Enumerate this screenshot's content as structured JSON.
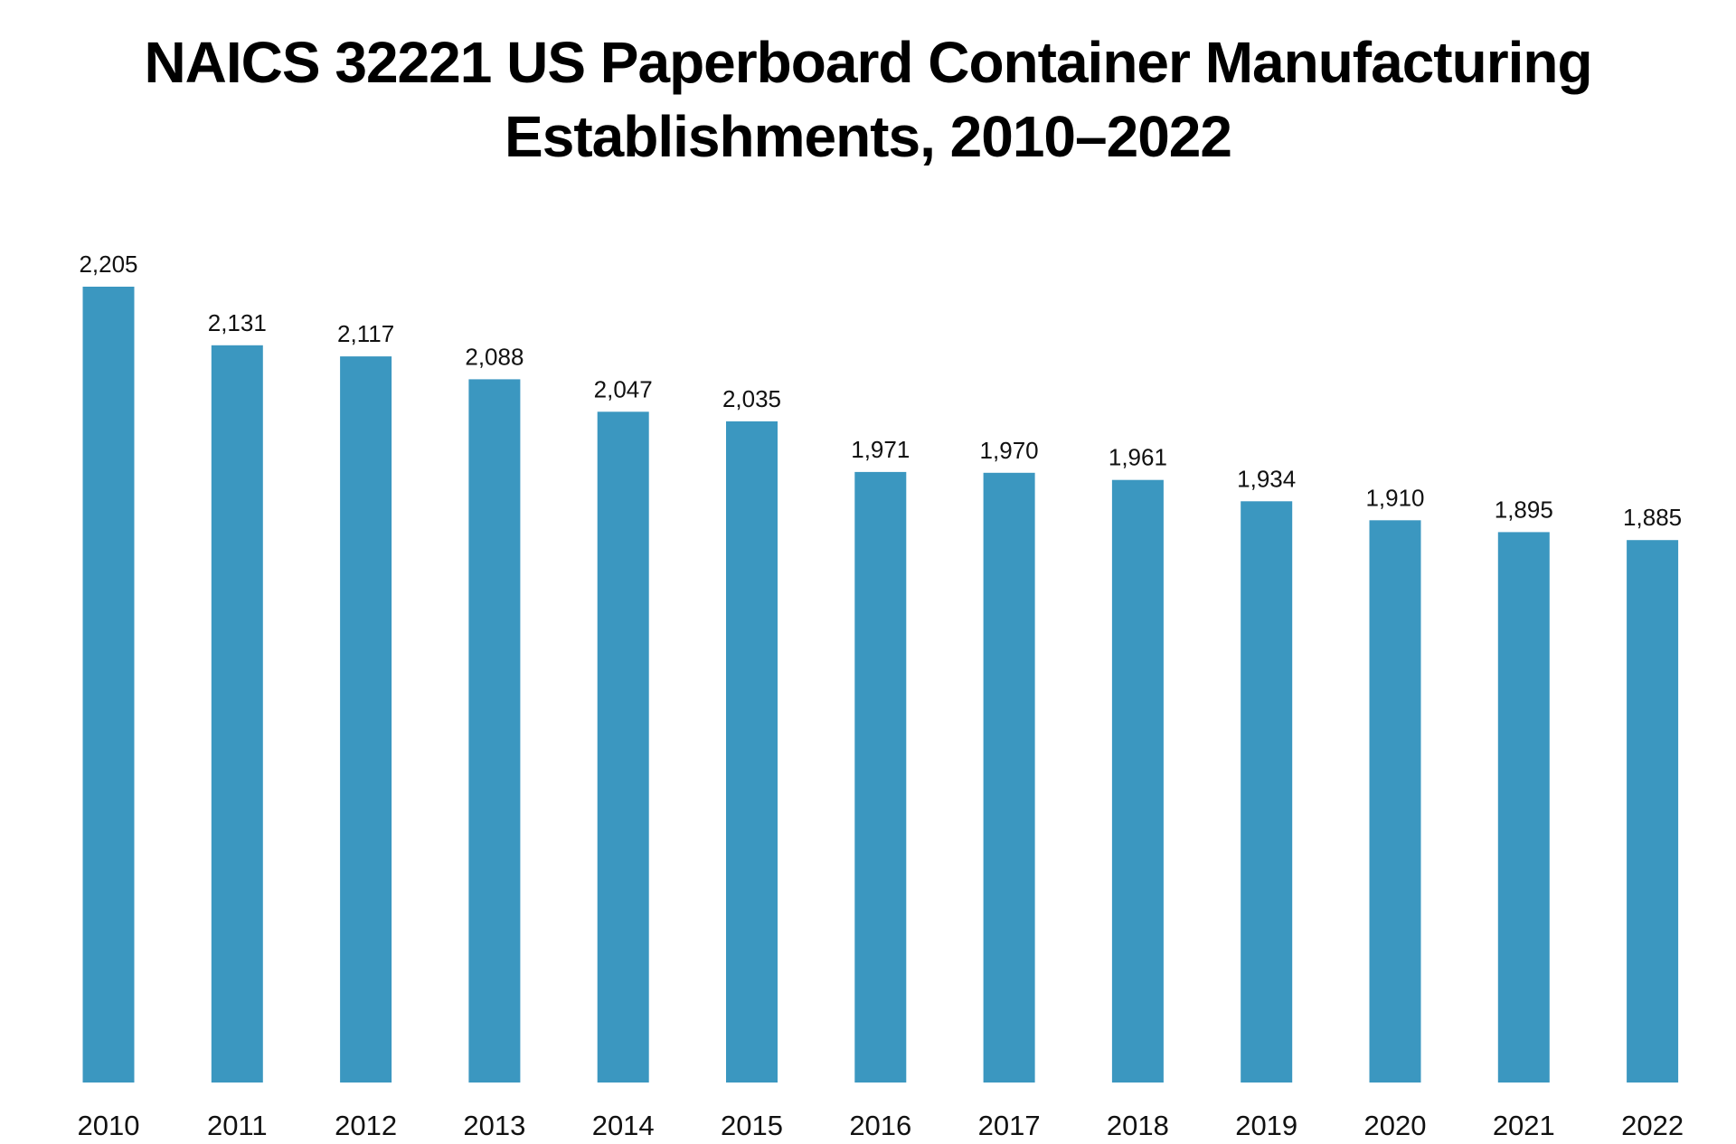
{
  "chart_data": {
    "type": "bar",
    "title_lines": [
      "NAICS 32221 US Paperboard Container Manufacturing",
      "Establishments, 2010–2022"
    ],
    "categories": [
      "2010",
      "2011",
      "2012",
      "2013",
      "2014",
      "2015",
      "2016",
      "2017",
      "2018",
      "2019",
      "2020",
      "2021",
      "2022"
    ],
    "values": [
      2205,
      2131,
      2117,
      2088,
      2047,
      2035,
      1971,
      1970,
      1961,
      1934,
      1910,
      1895,
      1885
    ],
    "value_labels": [
      "2,205",
      "2,131",
      "2,117",
      "2,088",
      "2,047",
      "2,035",
      "1,971",
      "1,970",
      "1,961",
      "1,934",
      "1,910",
      "1,895",
      "1,885"
    ],
    "xlabel": "",
    "ylabel": "",
    "ylim": [
      1200,
      2205
    ],
    "grid": false,
    "legend": "none",
    "bar_color": "#3b97c0"
  }
}
